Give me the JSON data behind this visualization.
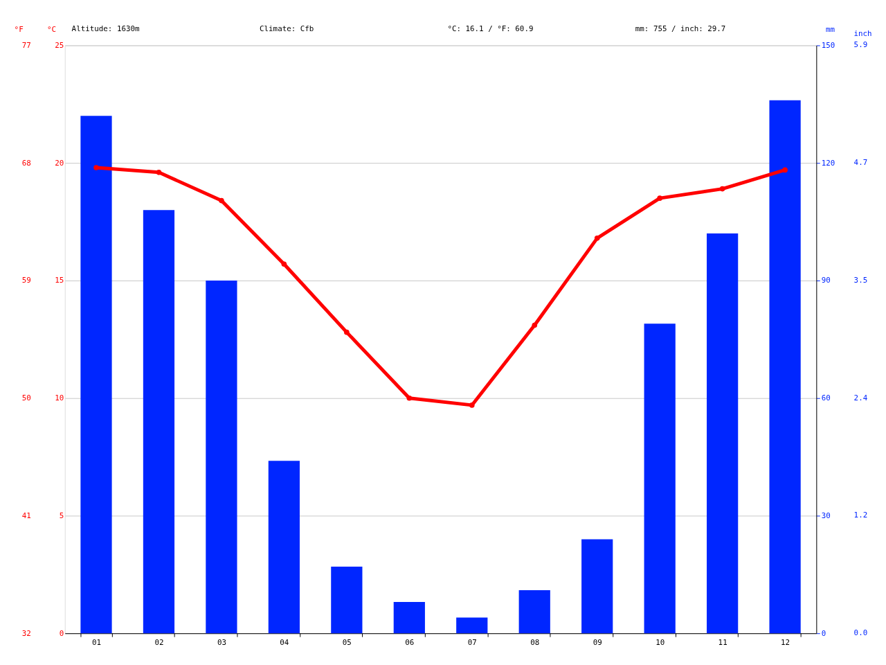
{
  "chart_data": {
    "type": "bar",
    "categories": [
      "01",
      "02",
      "03",
      "04",
      "05",
      "06",
      "07",
      "08",
      "09",
      "10",
      "11",
      "12"
    ],
    "series": [
      {
        "axis": "y2",
        "color": "#0026ff",
        "values": [
          132,
          108,
          90,
          44,
          17,
          8,
          4,
          11,
          24,
          79,
          102,
          136
        ]
      },
      {
        "type": "line",
        "color": "#ff0000",
        "values": [
          19.8,
          19.6,
          18.4,
          15.7,
          12.8,
          10.0,
          9.7,
          13.1,
          16.8,
          18.5,
          18.9,
          19.7
        ]
      }
    ],
    "ylabel": "°C",
    "ylim": [
      0,
      25
    ],
    "yticks": [
      0,
      5,
      10,
      15,
      20,
      25
    ],
    "y2label": "mm",
    "y2lim": [
      0,
      150
    ],
    "y2ticks": [
      0,
      30,
      60,
      90,
      120,
      150
    ],
    "y3label": "°F",
    "y3lim": [
      32,
      77
    ],
    "y3ticks": [
      32,
      41,
      50,
      59,
      68,
      77
    ],
    "annotations": [
      "Altitude: 1630m",
      "Climate: Cfb",
      "°C: 16.1 / °F: 60.9",
      "mm: 755 / inch: 29.7",
      "inch",
      "0.0",
      "1.2",
      "2.4",
      "3.5",
      "4.7",
      "5.9"
    ],
    "grid": "y",
    "marker": "circle",
    "line_style": "solid"
  }
}
